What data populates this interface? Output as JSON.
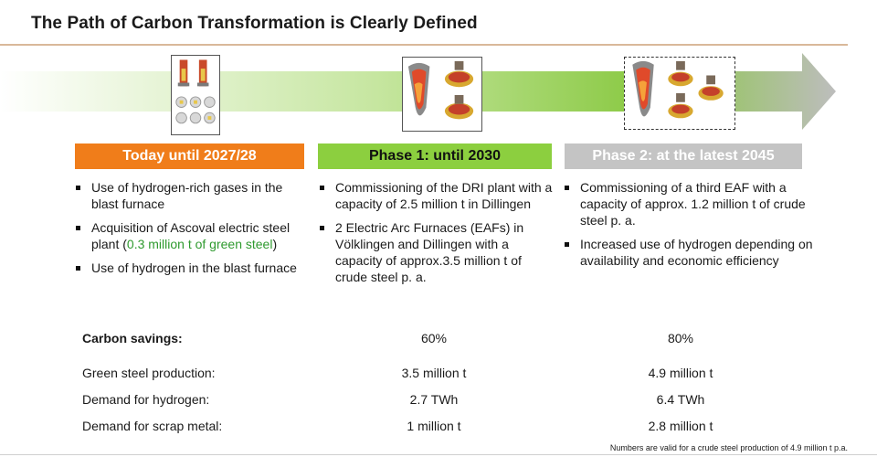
{
  "title": "The Path of Carbon Transformation is Clearly Defined",
  "phases": [
    {
      "label": "Today until 2027/28",
      "color": "#f07d1a"
    },
    {
      "label": "Phase 1: until 2030",
      "color": "#8ccf3f"
    },
    {
      "label": "Phase 2: at the latest 2045",
      "color": "#c4c4c4"
    }
  ],
  "columns": [
    {
      "bullets": [
        {
          "text": "Use of hydrogen-rich gases in the blast furnace"
        },
        {
          "text": "Acquisition of Ascoval electric steel plant (",
          "highlight": "0.3 million t of green steel",
          "after": ")"
        },
        {
          "text": "Use of hydrogen in the blast furnace"
        }
      ]
    },
    {
      "bullets": [
        {
          "text": "Commissioning of the DRI plant with a capacity of 2.5 million t in Dillingen"
        },
        {
          "text": "2 Electric Arc Furnaces (EAFs) in Völklingen  and Dillingen with a capacity of approx.3.5 million t of crude steel p. a."
        }
      ]
    },
    {
      "bullets": [
        {
          "text": "Commissioning of a third EAF with a capacity of approx. 1.2 million t of crude steel p. a."
        },
        {
          "text": "Increased use of hydrogen depending on availability and economic efficiency"
        }
      ]
    }
  ],
  "metrics": [
    {
      "label": "Carbon savings:",
      "phase1": "60%",
      "phase2": "80%"
    },
    {
      "label": "Green steel production:",
      "phase1": "3.5 million t",
      "phase2": "4.9 million t"
    },
    {
      "label": "Demand for hydrogen:",
      "phase1": "2.7 TWh",
      "phase2": "6.4 TWh"
    },
    {
      "label": "Demand for scrap metal:",
      "phase1": "1 million t",
      "phase2": "2.8 million t"
    }
  ],
  "footnote": "Numbers are valid for  a crude steel production of 4.9 million  t p.a.",
  "icons": {
    "today": "blast-furnace-icon",
    "phase1": "dri-plant-and-eaf-icon",
    "phase2": "eaf-expansion-icon"
  },
  "colors": {
    "arrow_start": "#ffffff",
    "arrow_end": "#88c840",
    "arrow_head": "#c8c8c8",
    "green_text": "#2e9a2e",
    "title_rule": "#d9b89a"
  }
}
